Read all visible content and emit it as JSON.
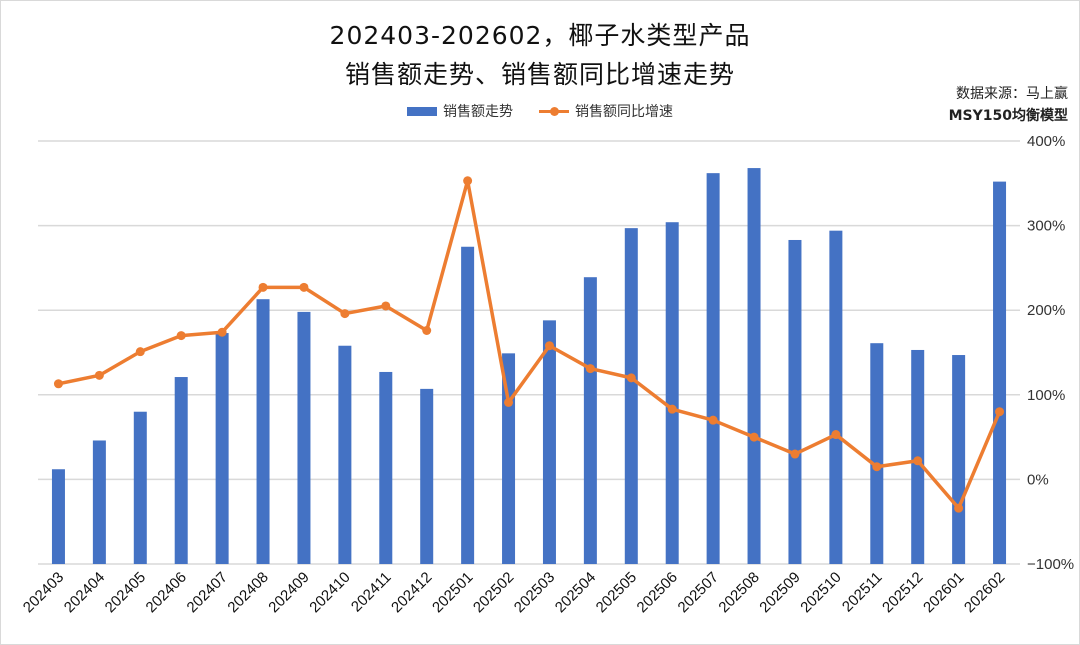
{
  "chart_data": {
    "type": "bar+line",
    "title": "202403-202602，椰子水类型产品",
    "subtitle": "销售额走势、销售额同比增速走势",
    "source_line1": "数据来源：马上赢",
    "source_line2": "MSY150均衡模型",
    "legend": [
      "销售额走势",
      "销售额同比增速"
    ],
    "legend_position": "top",
    "grid": true,
    "categories": [
      "202403",
      "202404",
      "202405",
      "202406",
      "202407",
      "202408",
      "202409",
      "202410",
      "202411",
      "202412",
      "202501",
      "202502",
      "202503",
      "202504",
      "202505",
      "202506",
      "202507",
      "202508",
      "202509",
      "202510",
      "202511",
      "202512",
      "202601",
      "202602"
    ],
    "series": [
      {
        "name": "销售额走势",
        "type": "bar",
        "axis": "left (unlabeled, relative heights)",
        "color": "#4472c4",
        "values": [
          112,
          146,
          180,
          221,
          273,
          313,
          298,
          258,
          227,
          207,
          375,
          249,
          288,
          339,
          397,
          404,
          462,
          468,
          383,
          394,
          261,
          253,
          247,
          452
        ]
      },
      {
        "name": "销售额同比增速",
        "type": "line",
        "axis": "right",
        "unit": "%",
        "color": "#ed7d31",
        "values": [
          113,
          123,
          151,
          170,
          174,
          227,
          227,
          196,
          205,
          176,
          353,
          91,
          158,
          131,
          120,
          83,
          70,
          50,
          30,
          53,
          15,
          22,
          -34,
          80
        ]
      }
    ],
    "y_right": {
      "ticks": [
        "400%",
        "300%",
        "200%",
        "100%",
        "0%",
        "-100%"
      ],
      "tick_values": [
        400,
        300,
        200,
        100,
        0,
        -100
      ],
      "ylim": [
        -100,
        400
      ]
    },
    "y_left": {
      "ticks": [],
      "ylim": [
        0,
        500
      ]
    },
    "xlabel": "",
    "ylabel": ""
  }
}
